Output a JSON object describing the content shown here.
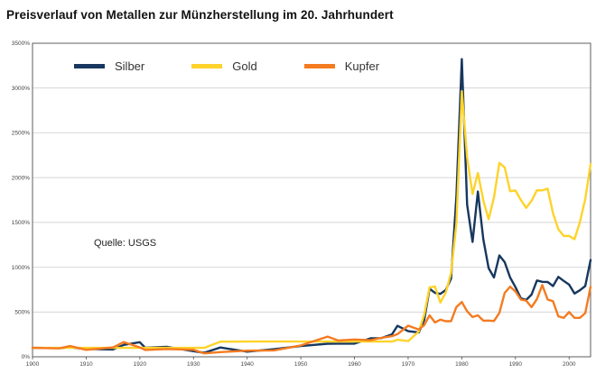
{
  "page": {
    "title": "Preisverlauf von Metallen zur Münzherstellung im 20. Jahrhundert"
  },
  "chart_data": {
    "type": "line",
    "title": "Preisverlauf von Metallen zur Münzherstellung im 20. Jahrhundert",
    "source_note": "Quelle: USGS",
    "xlabel": "",
    "ylabel": "",
    "xlim": [
      1900,
      2004
    ],
    "ylim": [
      0,
      3500
    ],
    "grid": "horizontal",
    "legend_position": "top-inside",
    "x_tick_labels": [
      "1900",
      "1910",
      "1920",
      "1930",
      "1940",
      "1950",
      "1960",
      "1970",
      "1980",
      "1990",
      "2000"
    ],
    "x_tick_values": [
      1900,
      1910,
      1920,
      1930,
      1940,
      1950,
      1960,
      1970,
      1980,
      1990,
      2000
    ],
    "y_tick_labels": [
      "0%",
      "500%",
      "1000%",
      "1500%",
      "2000%",
      "2500%",
      "3000%",
      "3500%"
    ],
    "y_tick_values": [
      0,
      500,
      1000,
      1500,
      2000,
      2500,
      3000,
      3500
    ],
    "x": [
      1900,
      1905,
      1907,
      1910,
      1915,
      1917,
      1920,
      1921,
      1925,
      1930,
      1932,
      1935,
      1940,
      1945,
      1950,
      1955,
      1957,
      1960,
      1963,
      1965,
      1967,
      1968,
      1970,
      1972,
      1973,
      1974,
      1975,
      1976,
      1977,
      1978,
      1979,
      1980,
      1981,
      1982,
      1983,
      1984,
      1985,
      1986,
      1987,
      1988,
      1989,
      1990,
      1991,
      1992,
      1993,
      1994,
      1995,
      1996,
      1997,
      1998,
      1999,
      2000,
      2001,
      2002,
      2003,
      2004
    ],
    "series": [
      {
        "name": "Silber",
        "color": "#17375e",
        "values": [
          100,
          98,
          106,
          87,
          81,
          133,
          163,
          101,
          112,
          62,
          45,
          104,
          57,
          84,
          120,
          146,
          147,
          147,
          206,
          208,
          250,
          346,
          286,
          272,
          413,
          760,
          713,
          702,
          745,
          873,
          1790,
          3323,
          1697,
          1282,
          1845,
          1313,
          990,
          885,
          1131,
          1056,
          885,
          777,
          652,
          635,
          694,
          852,
          837,
          835,
          790,
          892,
          847,
          806,
          706,
          742,
          790,
          1080
        ]
      },
      {
        "name": "Gold",
        "color": "#fed32a",
        "values": [
          100,
          100,
          100,
          100,
          100,
          100,
          100,
          100,
          100,
          100,
          100,
          169,
          170,
          170,
          170,
          170,
          170,
          170,
          170,
          170,
          170,
          190,
          175,
          283,
          470,
          775,
          783,
          605,
          716,
          935,
          1485,
          2965,
          2223,
          1817,
          2052,
          1746,
          1535,
          1778,
          2164,
          2113,
          1849,
          1856,
          1751,
          1663,
          1741,
          1859,
          1858,
          1877,
          1601,
          1423,
          1349,
          1350,
          1312,
          1500,
          1760,
          2150
        ]
      },
      {
        "name": "Kupfer",
        "color": "#f47b20",
        "values": [
          100,
          94,
          120,
          77,
          105,
          164,
          105,
          76,
          86,
          78,
          38,
          52,
          68,
          71,
          127,
          225,
          181,
          193,
          185,
          211,
          230,
          252,
          347,
          305,
          354,
          463,
          383,
          414,
          397,
          397,
          555,
          611,
          508,
          444,
          463,
          403,
          404,
          399,
          490,
          713,
          782,
          729,
          639,
          627,
          554,
          645,
          801,
          639,
          621,
          452,
          434,
          500,
          434,
          434,
          488,
          780
        ]
      }
    ]
  }
}
